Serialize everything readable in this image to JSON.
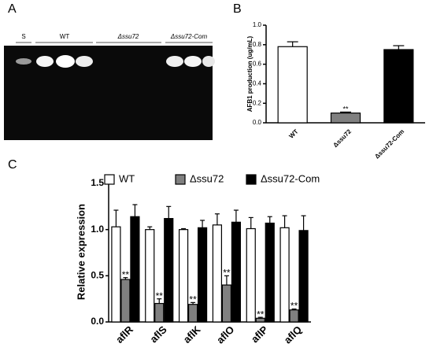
{
  "panel_a": {
    "label": "A",
    "lanes": [
      "S",
      "WT",
      "Δssu72",
      "Δssu72-Com"
    ]
  },
  "chart_data": [
    {
      "type": "bar",
      "panel_label": "B",
      "y_label": "AFB1 production (ug/mL)",
      "categories": [
        "WT",
        "Δssu72",
        "Δssu72-Com"
      ],
      "values": [
        0.78,
        0.1,
        0.75
      ],
      "errors": [
        0.05,
        0.01,
        0.04
      ],
      "colors": [
        "#ffffff",
        "#808080",
        "#000000"
      ],
      "significance": [
        null,
        "**",
        null
      ],
      "ylim": [
        0,
        1.0
      ],
      "yticks": [
        {
          "value": 0,
          "label": "0.0"
        },
        0.2,
        0.4,
        0.6,
        0.8,
        {
          "value": 1,
          "label": "1.0"
        }
      ]
    },
    {
      "type": "bar",
      "panel_label": "C",
      "y_label": "Relative expression",
      "categories": [
        "aflR",
        "aflS",
        "aflK",
        "aflO",
        "aflP",
        "aflQ"
      ],
      "series": [
        {
          "name": "WT",
          "color": "#ffffff",
          "values": [
            1.03,
            1.0,
            1.0,
            1.05,
            1.01,
            1.02
          ],
          "errors": [
            0.18,
            0.03,
            0.01,
            0.12,
            0.12,
            0.13
          ]
        },
        {
          "name": "Δssu72",
          "color": "#808080",
          "values": [
            0.46,
            0.2,
            0.19,
            0.4,
            0.04,
            0.13
          ],
          "errors": [
            0.02,
            0.05,
            0.02,
            0.1,
            0.01,
            0.01
          ],
          "significance": [
            "**",
            "**",
            "**",
            "**",
            "**",
            "**"
          ]
        },
        {
          "name": "Δssu72-Com",
          "color": "#000000",
          "values": [
            1.14,
            1.12,
            1.02,
            1.08,
            1.07,
            0.99
          ],
          "errors": [
            0.13,
            0.13,
            0.08,
            0.13,
            0.07,
            0.16
          ]
        }
      ],
      "legend": "top",
      "ylim": [
        0,
        1.5
      ],
      "yticks": [
        {
          "value": 0,
          "label": "0.0"
        },
        0.5,
        {
          "value": 1,
          "label": "1.0"
        },
        1.5
      ]
    }
  ]
}
